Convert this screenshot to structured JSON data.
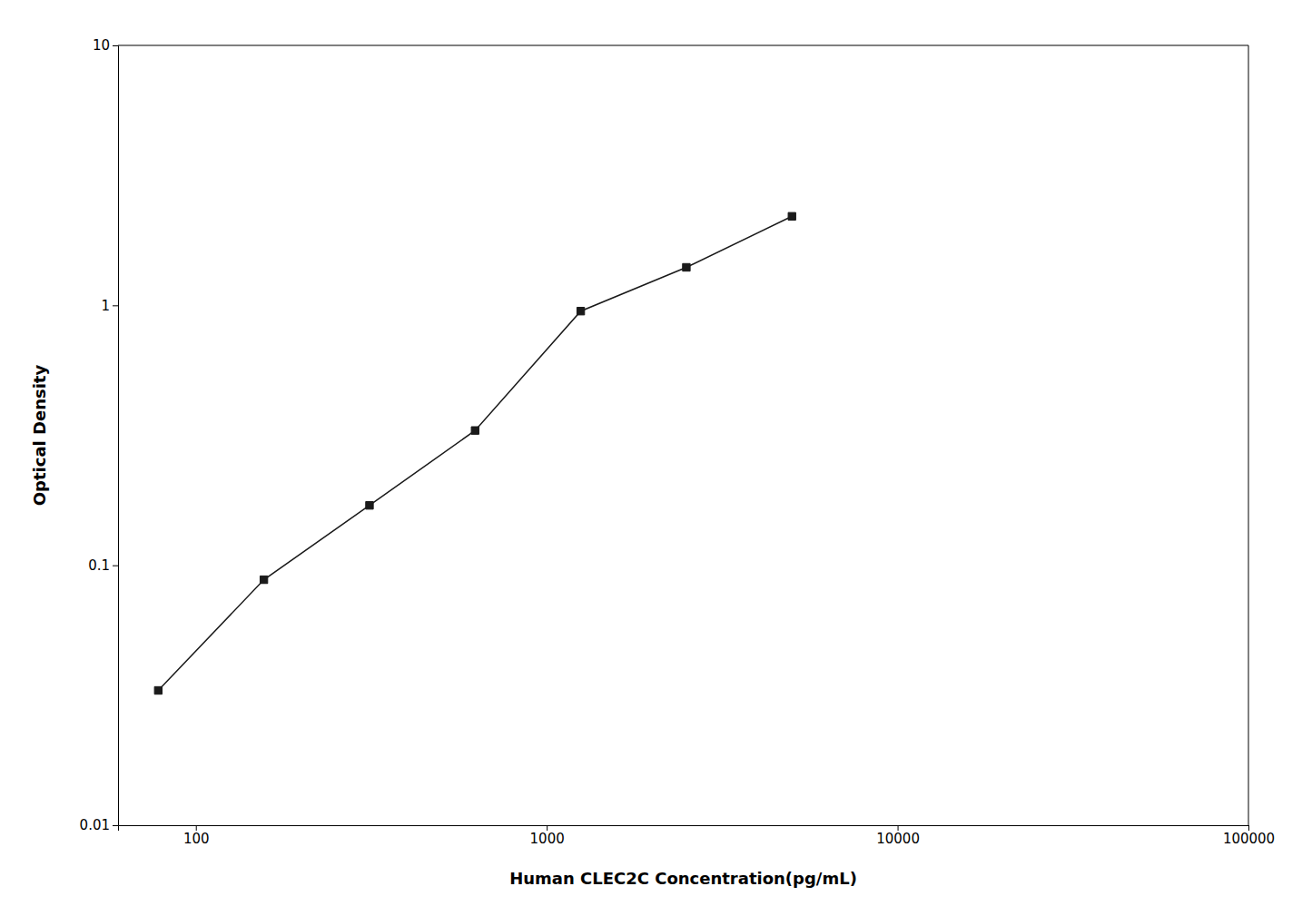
{
  "chart_data": {
    "type": "line",
    "x": [
      78.125,
      156.25,
      312.5,
      625,
      1250,
      2500,
      5000
    ],
    "values": [
      0.033,
      0.088,
      0.17,
      0.33,
      0.95,
      1.4,
      2.2
    ],
    "xlabel": "Human CLEC2C Concentration(pg/mL)",
    "ylabel": "Optical Density",
    "xlim": [
      60,
      100000
    ],
    "ylim": [
      0.01,
      10
    ],
    "xticks": [
      100,
      1000,
      10000,
      100000
    ],
    "yticks": [
      0.01,
      0.1,
      1,
      10
    ],
    "log": true,
    "grid": false,
    "color": "#1a1a1a",
    "marker": "square"
  }
}
